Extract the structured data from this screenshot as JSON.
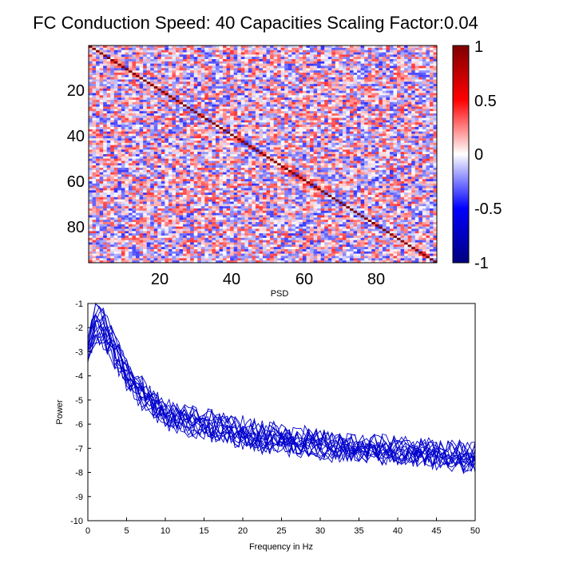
{
  "chart_data": [
    {
      "type": "heatmap",
      "title": "FC Conduction Speed: 40  Capacities Scaling Factor:0.04",
      "xlabel": "PSD",
      "size": 96,
      "x_ticks": [
        "20",
        "40",
        "60",
        "80"
      ],
      "y_ticks": [
        "20",
        "40",
        "60",
        "80"
      ],
      "colorbar": {
        "range": [
          -1,
          1
        ],
        "ticks": [
          "1",
          "0.5",
          "0",
          "-0.5",
          "-1"
        ],
        "colors": [
          "#00007f",
          "#0000ff",
          "#ffffff",
          "#ff0000",
          "#7f0000"
        ]
      },
      "diagonal_value": 1,
      "off_diagonal_range": [
        -0.4,
        0.4
      ]
    },
    {
      "type": "line",
      "xlabel": "Frequency in Hz",
      "ylabel": "Power",
      "xlim": [
        0,
        50
      ],
      "ylim": [
        -10,
        -1
      ],
      "x_ticks": [
        "0",
        "5",
        "10",
        "15",
        "20",
        "25",
        "30",
        "35",
        "40",
        "45",
        "50"
      ],
      "y_ticks": [
        "-1",
        "-2",
        "-3",
        "-4",
        "-5",
        "-6",
        "-7",
        "-8",
        "-9",
        "-10"
      ],
      "line_color": "#0000cc",
      "n_series": 16,
      "x": [
        0,
        1,
        2,
        3,
        4,
        5,
        6,
        7,
        8,
        9,
        10,
        12,
        14,
        16,
        18,
        20,
        22,
        25,
        28,
        30,
        32,
        35,
        38,
        40,
        42,
        45,
        48,
        50
      ],
      "series": [
        {
          "values": [
            -3.2,
            -2.1,
            -2.3,
            -2.8,
            -3.5,
            -4.0,
            -4.5,
            -4.8,
            -5.1,
            -5.4,
            -5.6,
            -5.9,
            -6.0,
            -6.2,
            -6.3,
            -6.5,
            -6.6,
            -6.7,
            -6.8,
            -6.9,
            -7.0,
            -7.0,
            -7.1,
            -7.2,
            -7.2,
            -7.3,
            -7.4,
            -7.5
          ]
        },
        {
          "values": [
            -2.8,
            -1.6,
            -1.8,
            -2.5,
            -3.2,
            -3.8,
            -4.3,
            -4.6,
            -5.0,
            -5.2,
            -5.5,
            -5.7,
            -5.9,
            -6.0,
            -6.2,
            -6.3,
            -6.5,
            -6.6,
            -6.7,
            -6.8,
            -6.9,
            -7.0,
            -7.0,
            -7.1,
            -7.2,
            -7.2,
            -7.3,
            -7.3
          ]
        }
      ]
    }
  ]
}
